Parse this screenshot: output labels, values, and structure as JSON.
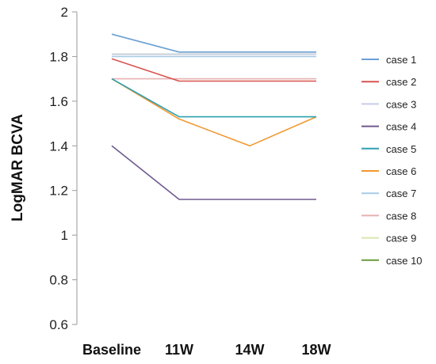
{
  "chart_data": {
    "type": "line",
    "title": "",
    "xlabel": "",
    "ylabel": "LogMAR BCVA",
    "categories": [
      "Baseline",
      "11W",
      "14W",
      "18W"
    ],
    "ylim": [
      0.6,
      2
    ],
    "yticks": [
      "0.6",
      "0.8",
      "1",
      "1.2",
      "1.4",
      "1.6",
      "1.8",
      "2"
    ],
    "grid": false,
    "legend_position": "right",
    "series": [
      {
        "name": "case 1",
        "color": "#6a9fd4",
        "values": [
          1.9,
          1.82,
          null,
          1.82
        ]
      },
      {
        "name": "case 2",
        "color": "#d9534f",
        "values": [
          1.79,
          1.69,
          null,
          1.69
        ]
      },
      {
        "name": "case 3",
        "color": "#c8cde6",
        "values": [
          1.81,
          1.81,
          null,
          1.81
        ]
      },
      {
        "name": "case 4",
        "color": "#6e5a8f",
        "values": [
          1.4,
          1.16,
          null,
          1.16
        ]
      },
      {
        "name": "case 5",
        "color": "#2fa0b0",
        "values": [
          1.7,
          1.53,
          null,
          1.53
        ]
      },
      {
        "name": "case 6",
        "color": "#f2982f",
        "values": [
          1.7,
          1.52,
          1.4,
          1.53
        ]
      },
      {
        "name": "case 7",
        "color": "#a9cbe6",
        "values": [
          1.8,
          1.8,
          null,
          1.8
        ]
      },
      {
        "name": "case 8",
        "color": "#e6b0b0",
        "values": [
          1.7,
          1.7,
          null,
          1.7
        ]
      },
      {
        "name": "case 9",
        "color": "#d8e6b0",
        "values": [
          1.81,
          1.81,
          null,
          1.81
        ]
      },
      {
        "name": "case 10",
        "color": "#6a9a3a",
        "values": [
          1.81,
          1.81,
          null,
          1.81
        ]
      }
    ]
  }
}
